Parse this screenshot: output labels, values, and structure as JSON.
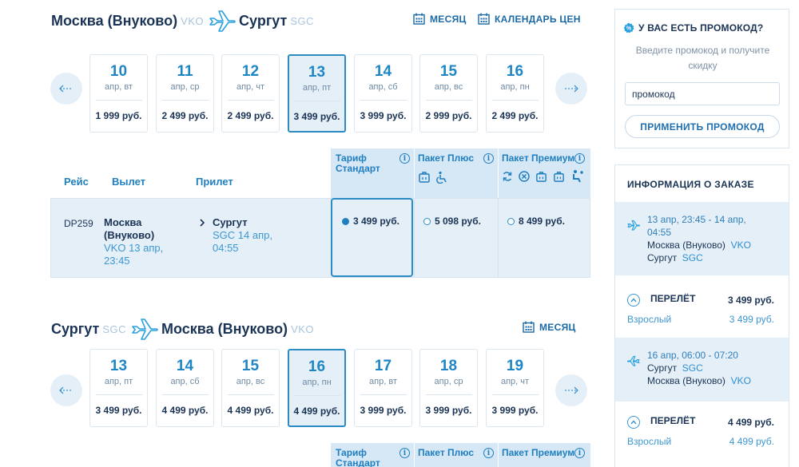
{
  "outbound": {
    "from_city": "Москва (Внуково)",
    "from_code": "VKO",
    "to_city": "Сургут",
    "to_code": "SGC",
    "month_label": "МЕСЯЦ",
    "calendar_label": "КАЛЕНДАРЬ ЦЕН",
    "days": [
      {
        "num": "10",
        "dow": "апр, вт",
        "price": "1 999 руб."
      },
      {
        "num": "11",
        "dow": "апр, ср",
        "price": "2 499 руб."
      },
      {
        "num": "12",
        "dow": "апр, чт",
        "price": "2 499 руб."
      },
      {
        "num": "13",
        "dow": "апр, пт",
        "price": "3 499 руб.",
        "selected": true
      },
      {
        "num": "14",
        "dow": "апр, сб",
        "price": "3 999 руб."
      },
      {
        "num": "15",
        "dow": "апр, вс",
        "price": "2 999 руб."
      },
      {
        "num": "16",
        "dow": "апр, пн",
        "price": "2 499 руб."
      }
    ]
  },
  "table": {
    "col_flight": "Рейс",
    "col_depart": "Вылет",
    "col_arrive": "Прилет",
    "tariff_standard": "Тариф Стандарт",
    "tariff_standard_l1": "Тариф",
    "tariff_standard_l2": "Стандарт",
    "tariff_plus": "Пакет Плюс",
    "tariff_premium": "Пакет Премиум",
    "info_glyph": "i"
  },
  "flight": {
    "number": "DP259",
    "dep_city_l1": "Москва",
    "dep_city_l2": "(Внуково)",
    "dep_code_date": "VKO 13 апр,",
    "dep_time": "23:45",
    "arr_city": "Сургут",
    "arr_code_date": "SGC 14 апр,",
    "arr_time": "04:55",
    "price_standard": "3 499 руб.",
    "price_plus": "5 098 руб.",
    "price_premium": "8 499 руб."
  },
  "return": {
    "from_city": "Сургут",
    "from_code": "SGC",
    "to_city": "Москва (Внуково)",
    "to_code": "VKO",
    "month_label": "МЕСЯЦ",
    "days": [
      {
        "num": "13",
        "dow": "апр, пт",
        "price": "3 499 руб."
      },
      {
        "num": "14",
        "dow": "апр, сб",
        "price": "4 499 руб."
      },
      {
        "num": "15",
        "dow": "апр, вс",
        "price": "4 499 руб."
      },
      {
        "num": "16",
        "dow": "апр, пн",
        "price": "4 499 руб.",
        "selected": true
      },
      {
        "num": "17",
        "dow": "апр, вт",
        "price": "3 999 руб."
      },
      {
        "num": "18",
        "dow": "апр, ср",
        "price": "3 999 руб."
      },
      {
        "num": "19",
        "dow": "апр, чт",
        "price": "3 999 руб."
      }
    ]
  },
  "promo": {
    "title": "У ВАС ЕСТЬ ПРОМОКОД?",
    "hint_l1": "Введите промокод и получите",
    "hint_l2": "скидку",
    "input_value": "промокод",
    "apply_label": "ПРИМЕНИТЬ ПРОМОКОД"
  },
  "order": {
    "title": "ИНФОРМАЦИЯ О ЗАКАЗЕ",
    "segments": [
      {
        "date_l1": "13 апр, 23:45 - 14 апр,",
        "date_l2": "04:55",
        "from_city": "Москва (Внуково)",
        "from_code": "VKO",
        "to_city": "Сургут",
        "to_code": "SGC",
        "fare_label": "ПЕРЕЛЁТ",
        "fare_price": "3 499 руб.",
        "pax_label": "Взрослый",
        "pax_price": "3 499 руб."
      },
      {
        "date_l1": "16 апр, 06:00 - 07:20",
        "from_city": "Сургут",
        "from_code": "SGC",
        "to_city": "Москва (Внуково)",
        "to_code": "VKO",
        "fare_label": "ПЕРЕЛЁТ",
        "fare_price": "4 499 руб.",
        "pax_label": "Взрослый",
        "pax_price": "4 499 руб."
      }
    ]
  },
  "colors": {
    "accent": "#1f7fc0",
    "selected_bg": "#e4eff8",
    "tariff_bg": "#d6e7f5",
    "title": "#1b3455"
  }
}
